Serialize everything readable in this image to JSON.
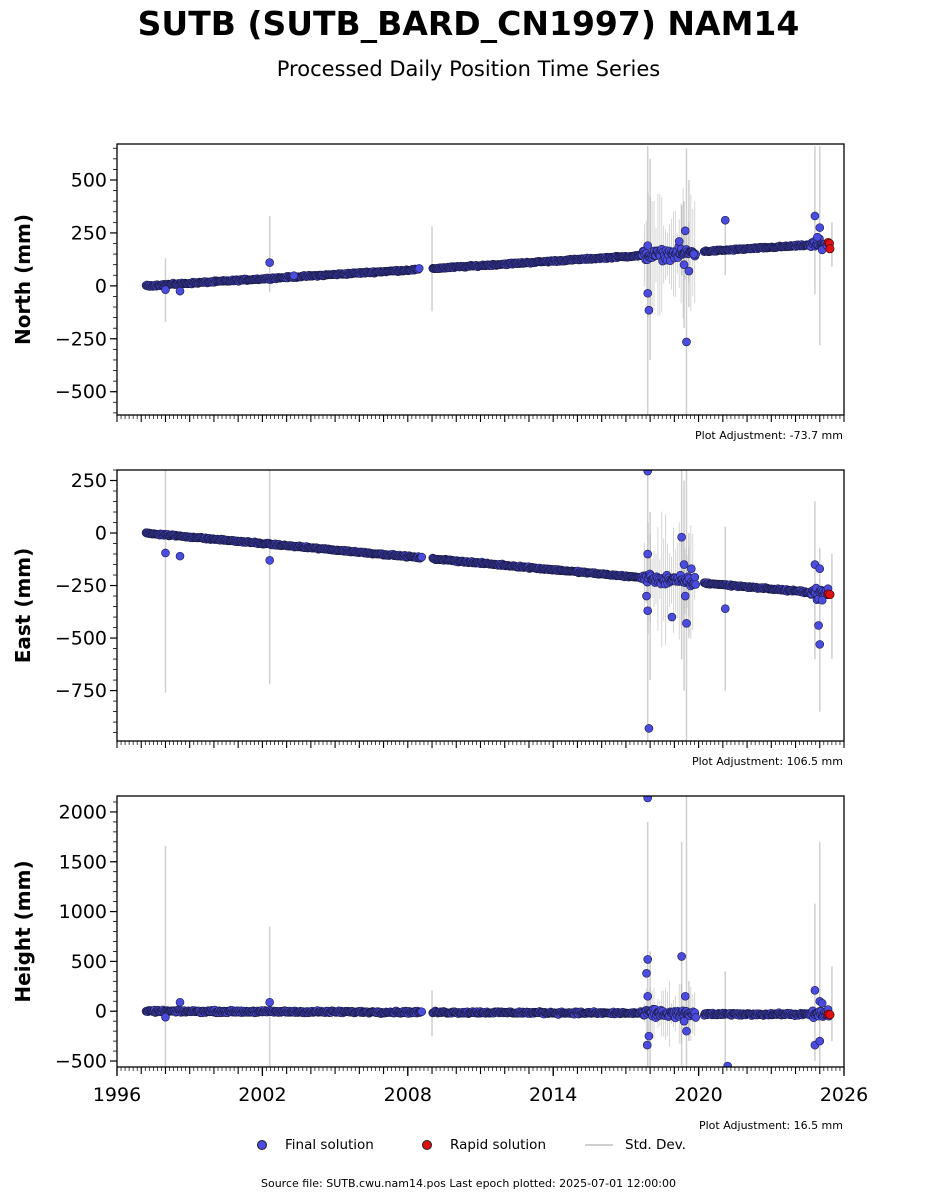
{
  "title": "SUTB (SUTB_BARD_CN1997) NAM14",
  "subtitle": "Processed Daily Position Time Series",
  "chart_data": [
    {
      "type": "scatter",
      "ylabel": "North (mm)",
      "xlim": [
        1996,
        2026
      ],
      "ylim": [
        -610,
        670
      ],
      "yticks": [
        -500,
        -250,
        0,
        250,
        500
      ],
      "yticklabels": [
        "−500",
        "−250",
        "0",
        "250",
        "500"
      ],
      "annotation": "Plot Adjustment: -73.7 mm",
      "trend": [
        [
          1997.2,
          0
        ],
        [
          2008.5,
          78
        ],
        [
          2017.9,
          145
        ],
        [
          2018.2,
          145
        ],
        [
          2019.5,
          155
        ],
        [
          2019.9,
          160
        ],
        [
          2025.3,
          198
        ]
      ],
      "gaps": [
        [
          2008.5,
          2009.0
        ],
        [
          2019.9,
          2020.2
        ]
      ],
      "outliers": [
        [
          1998.0,
          -18
        ],
        [
          1998.6,
          -25
        ],
        [
          2002.3,
          110
        ],
        [
          2003.3,
          48
        ],
        [
          2017.9,
          -35
        ],
        [
          2017.95,
          -115
        ],
        [
          2017.9,
          190
        ],
        [
          2019.2,
          210
        ],
        [
          2019.5,
          -265
        ],
        [
          2019.45,
          260
        ],
        [
          2019.4,
          100
        ],
        [
          2019.6,
          70
        ],
        [
          2019.8,
          150
        ],
        [
          2021.1,
          310
        ],
        [
          2024.8,
          330
        ],
        [
          2025.0,
          275
        ],
        [
          2024.9,
          230
        ],
        [
          2025.1,
          170
        ],
        [
          2025.3,
          190
        ]
      ],
      "rapid": [
        [
          2025.35,
          205
        ],
        [
          2025.4,
          200
        ],
        [
          2025.42,
          175
        ]
      ],
      "stddev": [
        [
          1998.0,
          -170,
          130
        ],
        [
          2002.3,
          -30,
          330
        ],
        [
          2009.0,
          -120,
          280
        ],
        [
          2017.9,
          -610,
          660
        ],
        [
          2018.0,
          -350,
          600
        ],
        [
          2019.3,
          50,
          380
        ],
        [
          2019.5,
          -610,
          650
        ],
        [
          2019.6,
          -100,
          500
        ],
        [
          2019.4,
          -200,
          400
        ],
        [
          2021.1,
          50,
          300
        ],
        [
          2024.8,
          -40,
          660
        ],
        [
          2025.0,
          -280,
          660
        ],
        [
          2025.5,
          90,
          300
        ]
      ]
    },
    {
      "type": "scatter",
      "ylabel": "East (mm)",
      "xlim": [
        1996,
        2026
      ],
      "ylim": [
        -990,
        300
      ],
      "yticks": [
        -750,
        -500,
        -250,
        0,
        250
      ],
      "yticklabels": [
        "−750",
        "−500",
        "−250",
        "0",
        "250"
      ],
      "annotation": "Plot Adjustment: 106.5 mm",
      "trend": [
        [
          1997.2,
          0
        ],
        [
          2008.6,
          -118
        ],
        [
          2017.9,
          -215
        ],
        [
          2019.9,
          -235
        ],
        [
          2025.4,
          -290
        ]
      ],
      "gaps": [
        [
          2008.6,
          2009.0
        ],
        [
          2019.9,
          2020.2
        ]
      ],
      "outliers": [
        [
          1998.0,
          -95
        ],
        [
          1998.6,
          -110
        ],
        [
          2002.3,
          -130
        ],
        [
          2017.9,
          295
        ],
        [
          2017.95,
          -930
        ],
        [
          2017.9,
          -370
        ],
        [
          2017.85,
          -300
        ],
        [
          2017.9,
          -100
        ],
        [
          2018.9,
          -400
        ],
        [
          2019.3,
          -20
        ],
        [
          2019.5,
          -430
        ],
        [
          2019.45,
          -300
        ],
        [
          2019.4,
          -150
        ],
        [
          2019.7,
          -170
        ],
        [
          2021.1,
          -360
        ],
        [
          2024.8,
          -150
        ],
        [
          2025.0,
          -530
        ],
        [
          2024.95,
          -440
        ],
        [
          2025.0,
          -170
        ],
        [
          2025.1,
          -320
        ]
      ],
      "rapid": [
        [
          2025.35,
          -290
        ],
        [
          2025.42,
          -293
        ]
      ],
      "stddev": [
        [
          1998.0,
          -760,
          300
        ],
        [
          2002.3,
          -720,
          300
        ],
        [
          2017.9,
          -990,
          300
        ],
        [
          2018.0,
          -700,
          100
        ],
        [
          2019.3,
          -600,
          300
        ],
        [
          2019.5,
          -990,
          300
        ],
        [
          2019.6,
          -500,
          0
        ],
        [
          2019.4,
          -750,
          250
        ],
        [
          2021.1,
          -750,
          30
        ],
        [
          2024.8,
          -600,
          150
        ],
        [
          2025.0,
          -850,
          -70
        ],
        [
          2025.5,
          -600,
          -100
        ]
      ]
    },
    {
      "type": "scatter",
      "ylabel": "Height (mm)",
      "xlim": [
        1996,
        2026
      ],
      "ylim": [
        -560,
        2160
      ],
      "yticks": [
        -500,
        0,
        500,
        1000,
        1500,
        2000
      ],
      "yticklabels": [
        "−500",
        "0",
        "500",
        "1000",
        "1500",
        "2000"
      ],
      "xticks": [
        1996,
        2002,
        2008,
        2014,
        2020,
        2026
      ],
      "xticklabels": [
        "1996",
        "2002",
        "2008",
        "2014",
        "2020",
        "2026"
      ],
      "annotation": "Plot Adjustment: 16.5 mm",
      "trend": [
        [
          1997.2,
          0
        ],
        [
          2008.6,
          -10
        ],
        [
          2017.9,
          -20
        ],
        [
          2019.9,
          -30
        ],
        [
          2025.4,
          -30
        ]
      ],
      "gaps": [
        [
          2008.6,
          2009.0
        ],
        [
          2019.9,
          2020.2
        ]
      ],
      "outliers": [
        [
          1998.0,
          -60
        ],
        [
          1998.6,
          90
        ],
        [
          2002.3,
          90
        ],
        [
          2017.9,
          2140
        ],
        [
          2017.9,
          520
        ],
        [
          2017.85,
          380
        ],
        [
          2017.9,
          150
        ],
        [
          2017.88,
          -340
        ],
        [
          2017.95,
          -250
        ],
        [
          2019.3,
          550
        ],
        [
          2019.5,
          -200
        ],
        [
          2019.45,
          150
        ],
        [
          2019.4,
          -100
        ],
        [
          2021.2,
          -550
        ],
        [
          2024.8,
          210
        ],
        [
          2024.8,
          -340
        ],
        [
          2025.0,
          -300
        ],
        [
          2025.0,
          100
        ],
        [
          2025.1,
          80
        ]
      ],
      "rapid": [
        [
          2025.35,
          -30
        ],
        [
          2025.42,
          -35
        ]
      ],
      "stddev": [
        [
          1998.0,
          -560,
          1660
        ],
        [
          2002.3,
          -560,
          850
        ],
        [
          2009.0,
          -250,
          210
        ],
        [
          2017.9,
          -560,
          1900
        ],
        [
          2018.0,
          -560,
          600
        ],
        [
          2019.3,
          -560,
          1700
        ],
        [
          2019.5,
          -560,
          2160
        ],
        [
          2019.6,
          -300,
          300
        ],
        [
          2021.1,
          -560,
          400
        ],
        [
          2024.8,
          -500,
          1080
        ],
        [
          2025.0,
          -560,
          1700
        ],
        [
          2025.5,
          -300,
          450
        ]
      ]
    }
  ],
  "legend": {
    "final": "Final solution",
    "rapid": "Rapid solution",
    "std": "Std. Dev."
  },
  "colors": {
    "final": "#4b4be0",
    "rapid": "#dd1111",
    "std": "#cfcfcf",
    "edge": "#1a1a40"
  },
  "footer": "Source file: SUTB.cwu.nam14.pos  Last epoch plotted: 2025-07-01 12:00:00"
}
